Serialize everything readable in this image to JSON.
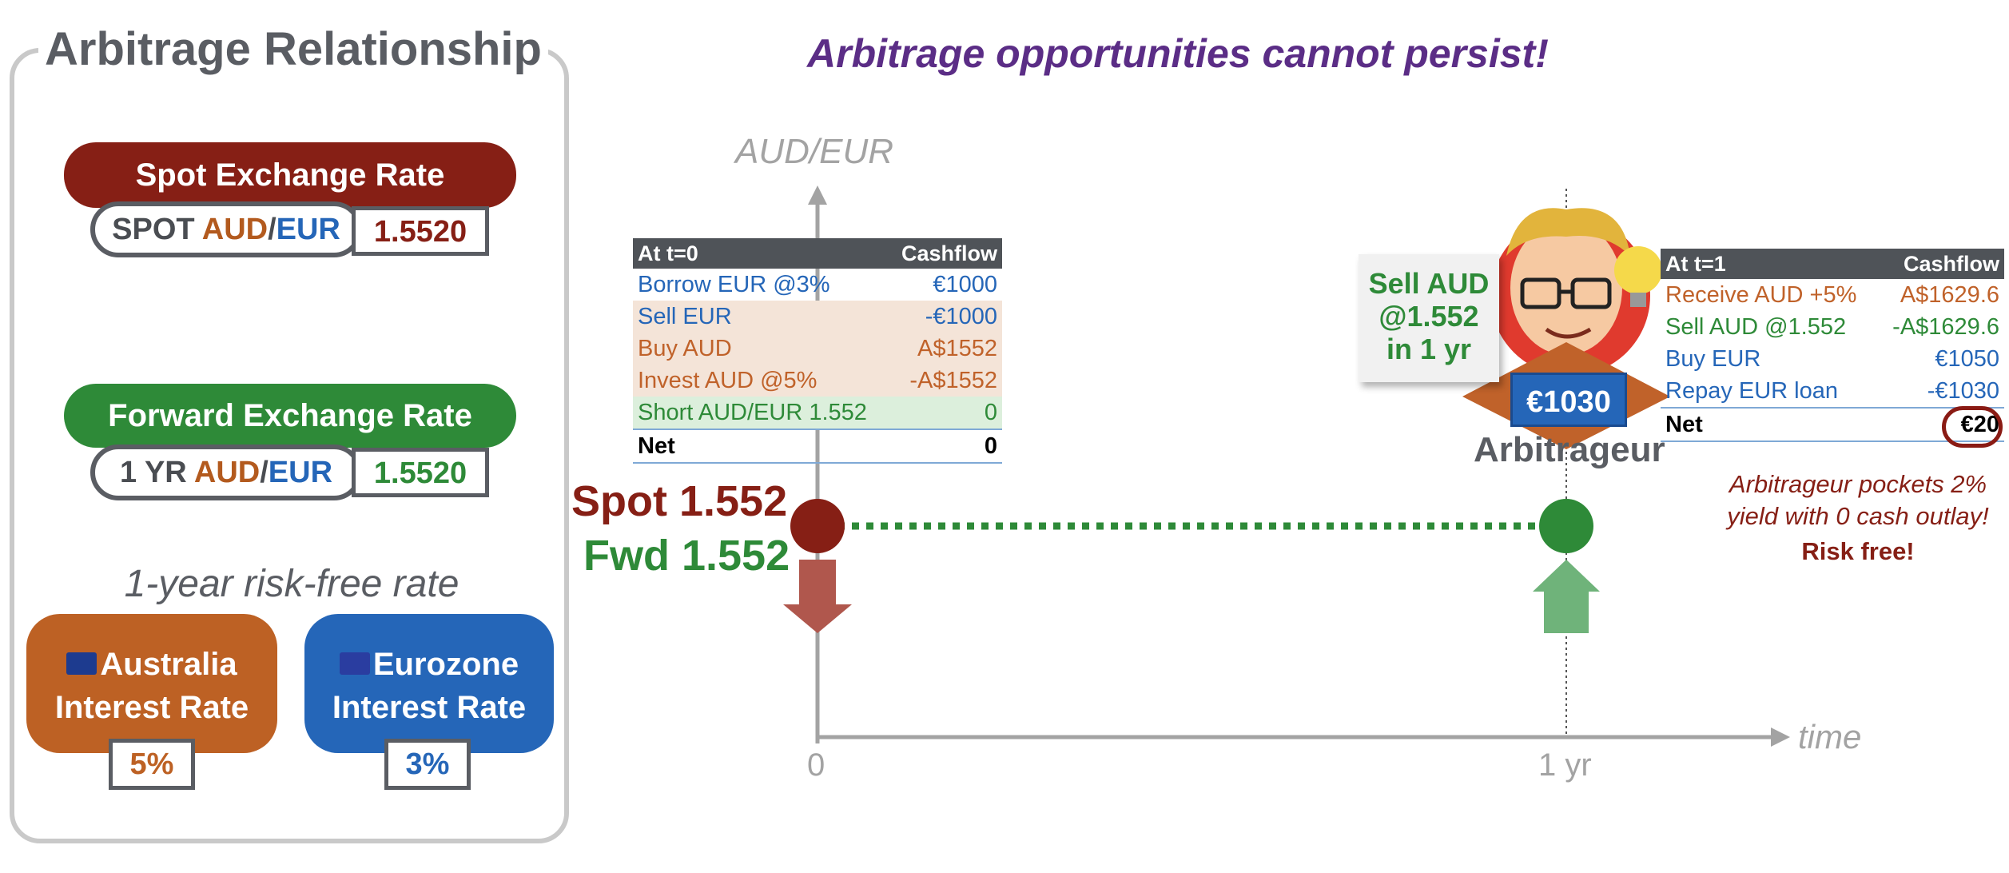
{
  "headline": "Arbitrage opportunities cannot persist!",
  "left_panel": {
    "title": "Arbitrage Relationship",
    "spot": {
      "label": "Spot Exchange Rate",
      "code_prefix": "SPOT",
      "code_aud": "AUD",
      "code_sep": "/",
      "code_eur": "EUR",
      "value": "1.5520"
    },
    "forward": {
      "label": "Forward Exchange Rate",
      "code_prefix": "1 YR",
      "code_aud": "AUD",
      "code_sep": "/",
      "code_eur": "EUR",
      "value": "1.5520"
    },
    "rf_label": "1-year risk-free rate",
    "australia": {
      "line1": "Australia",
      "line2": "Interest Rate",
      "value": "5%"
    },
    "eurozone": {
      "line1": "Eurozone",
      "line2": "Interest Rate",
      "value": "3%"
    }
  },
  "axes": {
    "y_label": "AUD/EUR",
    "x_label": "time",
    "tick0": "0",
    "tick1": "1 yr"
  },
  "markers": {
    "spot": "Spot 1.552",
    "fwd": "Fwd 1.552"
  },
  "table_t0": {
    "header": [
      "At t=0",
      "Cashflow"
    ],
    "rows": [
      {
        "item": "Borrow EUR @3%",
        "value": "€1000"
      },
      {
        "item": "Sell EUR",
        "value": "-€1000"
      },
      {
        "item": "Buy AUD",
        "value": "A$1552"
      },
      {
        "item": "Invest AUD @5%",
        "value": "-A$1552"
      },
      {
        "item": "Short AUD/EUR 1.552",
        "value": "0"
      },
      {
        "item": "Net",
        "value": "0"
      }
    ]
  },
  "table_t1": {
    "header": [
      "At t=1",
      "Cashflow"
    ],
    "rows": [
      {
        "item": "Receive AUD +5%",
        "value": "A$1629.6"
      },
      {
        "item": "Sell AUD @1.552",
        "value": "-A$1629.6"
      },
      {
        "item": "Buy EUR",
        "value": "€1050"
      },
      {
        "item": "Repay EUR loan",
        "value": "-€1030"
      },
      {
        "item": "Net",
        "value": "€20"
      }
    ]
  },
  "arbitrageur": {
    "note_line1": "Sell AUD",
    "note_line2": "@1.552",
    "note_line3": "in 1 yr",
    "badge": "€1030",
    "name": "Arbitrageur",
    "pocket_line1": "Arbitrageur pockets 2%",
    "pocket_line2": "yield with 0 cash outlay!",
    "risk_free": "Risk free!"
  },
  "colors": {
    "spot_red": "#861f15",
    "fwd_green": "#2e8a38",
    "aud_orange": "#bd6124",
    "eur_blue": "#2566b8",
    "headline_purple": "#5b2d86"
  }
}
